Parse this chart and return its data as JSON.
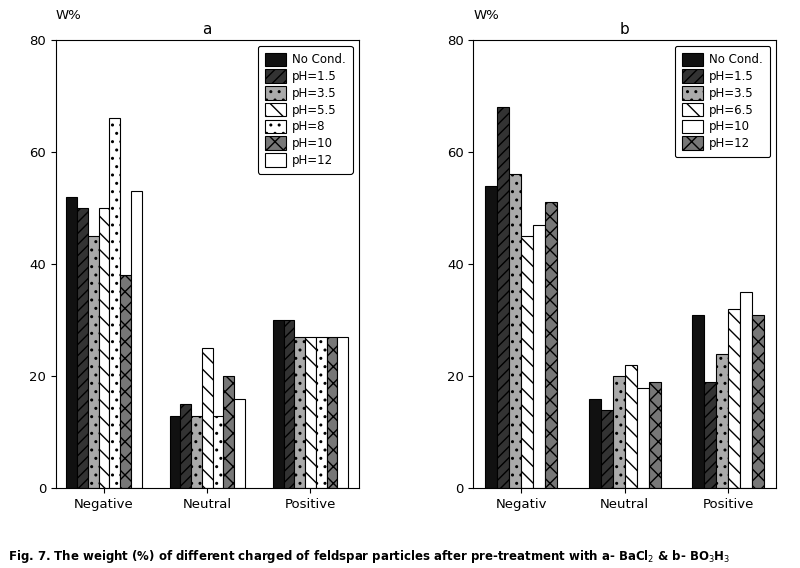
{
  "chart_a": {
    "title": "a",
    "categories": [
      "Negative",
      "Neutral",
      "Positive"
    ],
    "series_labels": [
      "No Cond.",
      "pH=1.5",
      "pH=3.5",
      "pH=5.5",
      "pH=8",
      "pH=10",
      "pH=12"
    ],
    "values": {
      "Negative": [
        52,
        50,
        45,
        50,
        66,
        38,
        53
      ],
      "Neutral": [
        13,
        15,
        13,
        25,
        13,
        20,
        16
      ],
      "Positive": [
        30,
        30,
        27,
        27,
        27,
        27,
        27
      ]
    },
    "ylim": [
      0,
      80
    ],
    "yticks": [
      0,
      20,
      40,
      60,
      80
    ],
    "ylabel": "W%"
  },
  "chart_b": {
    "title": "b",
    "categories": [
      "Negativ",
      "Neutral",
      "Positive"
    ],
    "series_labels": [
      "No Cond.",
      "pH=1.5",
      "pH=3.5",
      "pH=6.5",
      "pH=10",
      "pH=12"
    ],
    "values": {
      "Negativ": [
        54,
        68,
        56,
        45,
        47,
        51
      ],
      "Neutral": [
        16,
        14,
        20,
        22,
        18,
        19
      ],
      "Positive": [
        31,
        19,
        24,
        32,
        35,
        31
      ]
    },
    "ylim": [
      0,
      80
    ],
    "yticks": [
      0,
      20,
      40,
      60,
      80
    ],
    "ylabel": "W%"
  },
  "background_color": "#ffffff",
  "bar_edge_color": "#000000"
}
